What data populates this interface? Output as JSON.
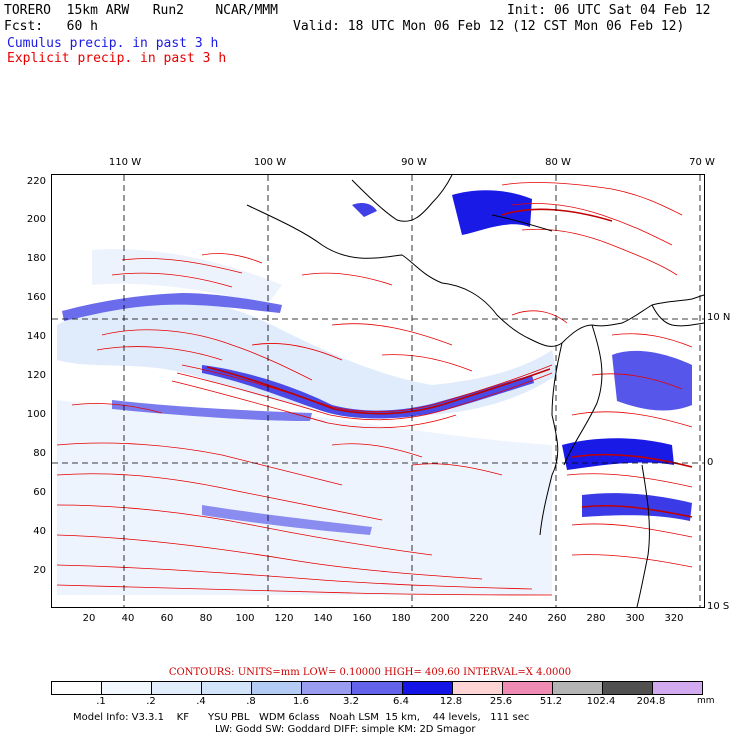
{
  "header": {
    "line1_left": "TORERO  15km ARW   Run2    NCAR/MMM",
    "line1_right": "Init: 06 UTC Sat 04 Feb 12",
    "line2_left": "Fcst:   60 h",
    "line2_right": "Valid: 18 UTC Mon 06 Feb 12 (12 CST Mon 06 Feb 12)",
    "field1": "Cumulus precip. in past 3 h",
    "field2": "Explicit precip. in past 3 h"
  },
  "colors": {
    "cumulus": "#1a1ae6",
    "explicit": "#e60000",
    "coast": "#000000"
  },
  "map": {
    "grid_x_ticks": [
      "20",
      "40",
      "60",
      "80",
      "100",
      "120",
      "140",
      "160",
      "180",
      "200",
      "220",
      "240",
      "260",
      "280",
      "300",
      "320"
    ],
    "grid_y_ticks": [
      "220",
      "200",
      "180",
      "160",
      "140",
      "120",
      "100",
      "80",
      "60",
      "40",
      "20"
    ],
    "lon_labels": [
      "110 W",
      "100 W",
      "90 W",
      "80 W",
      "70 W"
    ],
    "lat_labels": [
      "10 N",
      "0",
      "10 S"
    ]
  },
  "contours_line": "CONTOURS:  UNITS=mm  LOW= 0.10000       HIGH=  409.60       INTERVAL=X  4.0000",
  "colorbar": {
    "labels": [
      ".1",
      ".2",
      ".4",
      ".8",
      "1.6",
      "3.2",
      "6.4",
      "12.8",
      "25.6",
      "51.2",
      "102.4",
      "204.8"
    ],
    "unit": "mm",
    "colors": [
      "#ffffff",
      "#f2f8ff",
      "#e2eefc",
      "#d2e4fa",
      "#b4ccf4",
      "#9a9cf0",
      "#6262ea",
      "#1414e6",
      "#ffd4d4",
      "#f08cb4",
      "#b4b4b4",
      "#505050",
      "#d2aaf0"
    ]
  },
  "model_info": {
    "line1": "Model Info: V3.3.1    KF      YSU PBL   WDM 6class   Noah LSM  15 km,    44 levels,   111 sec",
    "line2": "LW: Godd SW: Goddard DIFF: simple KM: 2D Smagor"
  }
}
